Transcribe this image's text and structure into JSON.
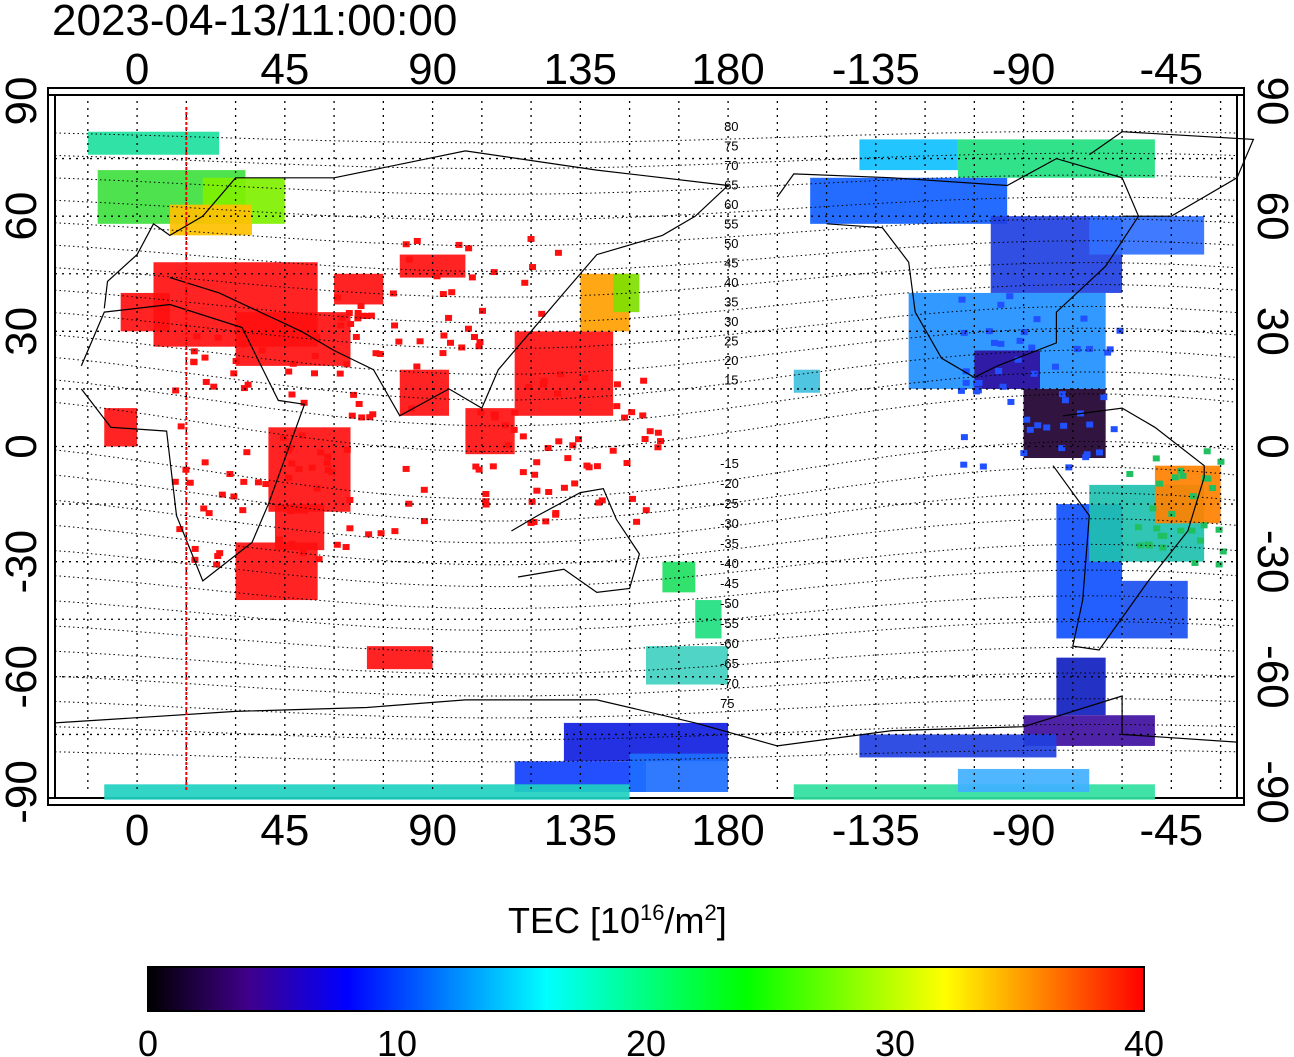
{
  "timestamp": "2023-04-13/11:00:00",
  "map": {
    "lon_ticks": [
      "0",
      "45",
      "90",
      "135",
      "180",
      "-135",
      "-90",
      "-45"
    ],
    "lon_values": [
      0,
      45,
      90,
      135,
      180,
      225,
      270,
      315
    ],
    "lat_ticks_left": [
      "90",
      "60",
      "30",
      "0",
      "-30",
      "-60",
      "-90"
    ],
    "lat_ticks_right": [
      "90",
      "60",
      "30",
      "0",
      "-30",
      "-60",
      "-90"
    ],
    "lat_values": [
      90,
      60,
      30,
      0,
      -30,
      -60,
      -90
    ],
    "lon_range": [
      -25,
      335
    ],
    "lat_range": [
      -90,
      90
    ],
    "grid": true,
    "terminator_lon": 15,
    "terminator_color": "#ff0000",
    "mlat_labels_north": [
      "80",
      "75",
      "70",
      "65",
      "60",
      "55",
      "50",
      "45",
      "40",
      "35",
      "30",
      "25",
      "20",
      "15"
    ],
    "mlat_labels_south": [
      "-15",
      "-20",
      "-25",
      "-30",
      "-35",
      "-40",
      "-45",
      "-50",
      "-55",
      "-60",
      "-65",
      "-70",
      "75"
    ]
  },
  "colorbar": {
    "title_prefix": "TEC  [10",
    "title_exp1": "16",
    "title_mid": "/m",
    "title_exp2": "2",
    "title_suffix": "]",
    "ticks": [
      "0",
      "10",
      "20",
      "30",
      "40"
    ],
    "range": [
      0,
      40
    ],
    "colors": [
      "#000000",
      "#40008a",
      "#0000ff",
      "#0080ff",
      "#00ffff",
      "#00ff80",
      "#00ff00",
      "#80ff00",
      "#ffff00",
      "#ff8000",
      "#ff0000"
    ]
  }
}
